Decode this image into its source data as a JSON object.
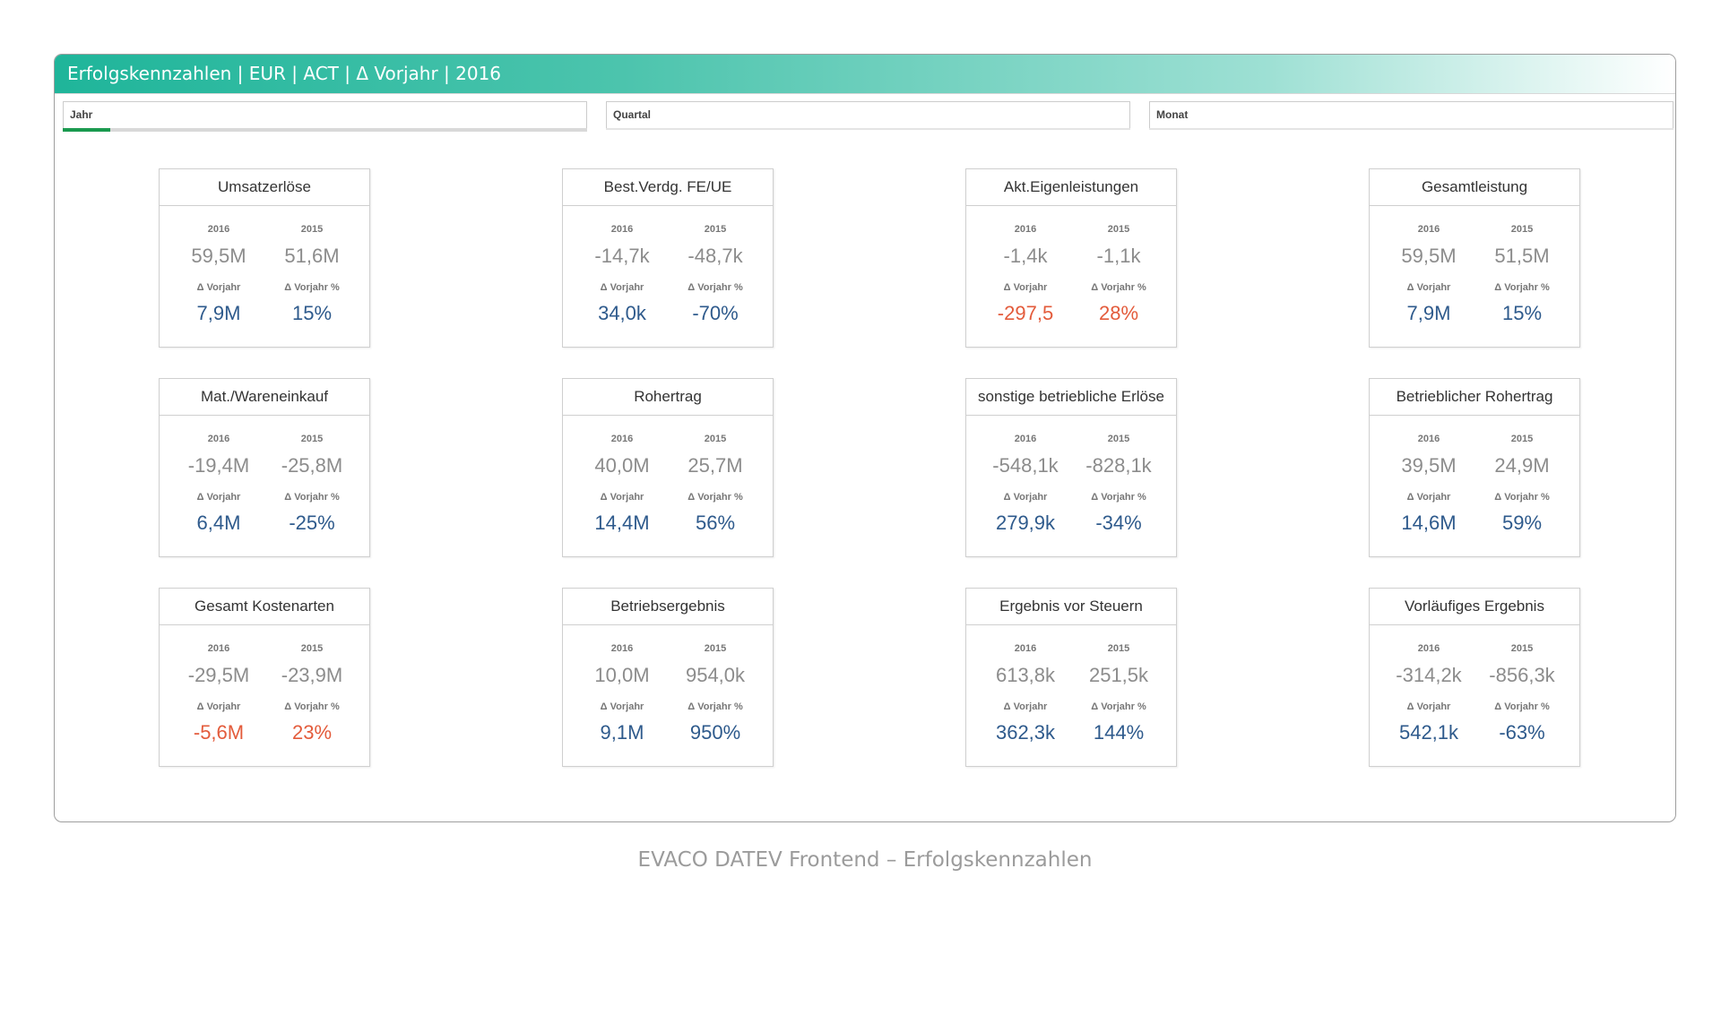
{
  "header": {
    "title": "Erfolgskennzahlen | EUR | ACT | Δ Vorjahr | 2016"
  },
  "filters": [
    {
      "label": "Jahr",
      "progress": 0.09
    },
    {
      "label": "Quartal"
    },
    {
      "label": "Monat"
    }
  ],
  "labels": {
    "year_current": "2016",
    "year_prev": "2015",
    "delta_abs": "Δ Vorjahr",
    "delta_pct": "Δ Vorjahr %"
  },
  "colors": {
    "positive": "#2e5a8c",
    "negative": "#e35b3b",
    "accent": "#1fb59a"
  },
  "cards": [
    {
      "title": "Umsatzerlöse",
      "v2016": "59,5M",
      "v2015": "51,6M",
      "delta": "7,9M",
      "delta_pct": "15%",
      "status": "positive"
    },
    {
      "title": "Best.Verdg. FE/UE",
      "v2016": "-14,7k",
      "v2015": "-48,7k",
      "delta": "34,0k",
      "delta_pct": "-70%",
      "status": "positive"
    },
    {
      "title": "Akt.Eigenleistungen",
      "v2016": "-1,4k",
      "v2015": "-1,1k",
      "delta": "-297,5",
      "delta_pct": "28%",
      "status": "negative"
    },
    {
      "title": "Gesamtleistung",
      "v2016": "59,5M",
      "v2015": "51,5M",
      "delta": "7,9M",
      "delta_pct": "15%",
      "status": "positive"
    },
    {
      "title": "Mat./Wareneinkauf",
      "v2016": "-19,4M",
      "v2015": "-25,8M",
      "delta": "6,4M",
      "delta_pct": "-25%",
      "status": "positive"
    },
    {
      "title": "Rohertrag",
      "v2016": "40,0M",
      "v2015": "25,7M",
      "delta": "14,4M",
      "delta_pct": "56%",
      "status": "positive"
    },
    {
      "title": "sonstige betriebliche Erlöse",
      "v2016": "-548,1k",
      "v2015": "-828,1k",
      "delta": "279,9k",
      "delta_pct": "-34%",
      "status": "positive"
    },
    {
      "title": "Betrieblicher Rohertrag",
      "v2016": "39,5M",
      "v2015": "24,9M",
      "delta": "14,6M",
      "delta_pct": "59%",
      "status": "positive"
    },
    {
      "title": "Gesamt Kostenarten",
      "v2016": "-29,5M",
      "v2015": "-23,9M",
      "delta": "-5,6M",
      "delta_pct": "23%",
      "status": "negative"
    },
    {
      "title": "Betriebsergebnis",
      "v2016": "10,0M",
      "v2015": "954,0k",
      "delta": "9,1M",
      "delta_pct": "950%",
      "status": "positive"
    },
    {
      "title": "Ergebnis vor Steuern",
      "v2016": "613,8k",
      "v2015": "251,5k",
      "delta": "362,3k",
      "delta_pct": "144%",
      "status": "positive"
    },
    {
      "title": "Vorläufiges Ergebnis",
      "v2016": "-314,2k",
      "v2015": "-856,3k",
      "delta": "542,1k",
      "delta_pct": "-63%",
      "status": "positive"
    }
  ],
  "caption": "EVACO DATEV Frontend – Erfolgskennzahlen"
}
